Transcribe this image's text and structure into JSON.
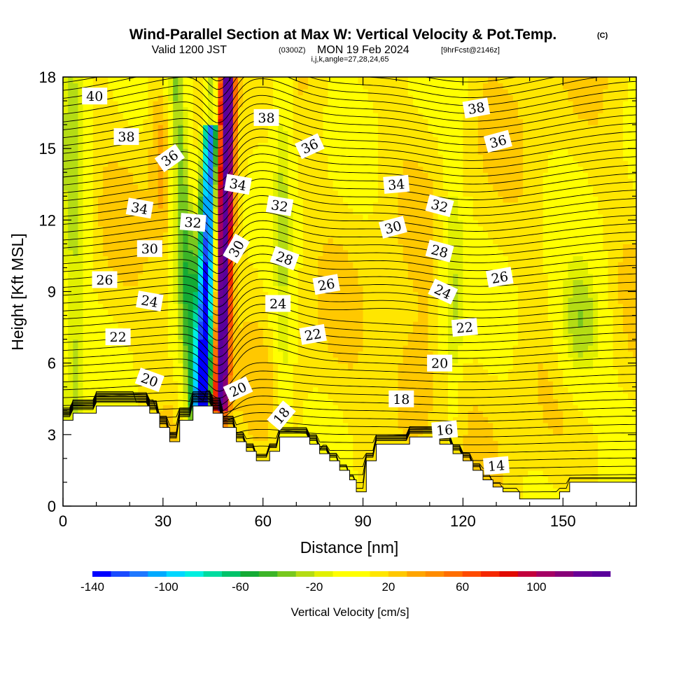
{
  "header": {
    "title": "Wind-Parallel Section at Max W: Vertical Velocity & Pot.Temp.",
    "copyright": "(C)",
    "valid_prefix": "Valid 1200 JST",
    "valid_z": "(0300Z)",
    "valid_date": "MON 19 Feb 2024",
    "forecast": "[9hrFcst@2146z]",
    "params": "i,j,k,angle=27,28,24,65"
  },
  "chart_data": {
    "type": "heatmap",
    "xlabel": "Distance [nm]",
    "ylabel": "Height [Kft MSL]",
    "xlim": [
      0,
      172
    ],
    "ylim": [
      0,
      18
    ],
    "xticks": [
      0,
      30,
      60,
      90,
      120,
      150
    ],
    "yticks": [
      0,
      3,
      6,
      9,
      12,
      15,
      18
    ],
    "colorbar": {
      "label": "Vertical Velocity [cm/s]",
      "range": [
        -140,
        140
      ],
      "step": 10,
      "tick_labels": [
        "-140",
        "-100",
        "-60",
        "-20",
        "20",
        "60",
        "100"
      ],
      "tick_values": [
        -140,
        -100,
        -60,
        -20,
        20,
        60,
        100
      ],
      "colors": [
        "#0000ff",
        "#1a4bff",
        "#1f78ff",
        "#00aaff",
        "#00d7ff",
        "#00efe0",
        "#00dca0",
        "#00c36a",
        "#14aa35",
        "#3cb428",
        "#78c81e",
        "#b4dc14",
        "#e1f000",
        "#ffff00",
        "#ffff00",
        "#ffe600",
        "#ffc800",
        "#ffa500",
        "#ff8c00",
        "#ff6e00",
        "#ff4b00",
        "#f52800",
        "#e10a00",
        "#c3003c",
        "#a50064",
        "#870078",
        "#690096",
        "#5a009b"
      ]
    },
    "terrain_kft": [
      [
        0,
        3.6
      ],
      [
        3,
        3.6
      ],
      [
        3,
        3.9
      ],
      [
        10,
        3.9
      ],
      [
        10,
        4.2
      ],
      [
        26,
        4.2
      ],
      [
        26,
        3.9
      ],
      [
        29,
        3.9
      ],
      [
        29,
        3.3
      ],
      [
        32,
        3.3
      ],
      [
        32,
        2.7
      ],
      [
        35,
        2.7
      ],
      [
        35,
        3.6
      ],
      [
        39,
        3.6
      ],
      [
        39,
        4.2
      ],
      [
        45,
        4.2
      ],
      [
        45,
        3.9
      ],
      [
        48,
        3.9
      ],
      [
        48,
        3.3
      ],
      [
        52,
        3.3
      ],
      [
        52,
        2.7
      ],
      [
        55,
        2.7
      ],
      [
        55,
        2.3
      ],
      [
        58,
        2.3
      ],
      [
        58,
        1.9
      ],
      [
        62,
        1.9
      ],
      [
        62,
        2.3
      ],
      [
        65,
        2.3
      ],
      [
        65,
        2.9
      ],
      [
        74,
        2.9
      ],
      [
        74,
        2.6
      ],
      [
        77,
        2.6
      ],
      [
        77,
        2.2
      ],
      [
        80,
        2.2
      ],
      [
        80,
        1.9
      ],
      [
        83,
        1.9
      ],
      [
        83,
        1.5
      ],
      [
        86,
        1.5
      ],
      [
        86,
        1.1
      ],
      [
        88,
        1.1
      ],
      [
        88,
        0.6
      ],
      [
        91,
        0.6
      ],
      [
        91,
        1.9
      ],
      [
        94,
        1.9
      ],
      [
        94,
        2.6
      ],
      [
        104,
        2.6
      ],
      [
        104,
        2.9
      ],
      [
        113,
        2.9
      ],
      [
        113,
        2.6
      ],
      [
        117,
        2.6
      ],
      [
        117,
        2.2
      ],
      [
        120,
        2.2
      ],
      [
        120,
        1.9
      ],
      [
        123,
        1.9
      ],
      [
        123,
        1.5
      ],
      [
        126,
        1.5
      ],
      [
        126,
        1.1
      ],
      [
        129,
        1.1
      ],
      [
        129,
        0.8
      ],
      [
        132,
        0.8
      ],
      [
        132,
        0.6
      ],
      [
        137,
        0.6
      ],
      [
        137,
        0.3
      ],
      [
        149,
        0.3
      ],
      [
        149,
        0.6
      ],
      [
        152,
        0.6
      ],
      [
        152,
        1.0
      ],
      [
        172,
        1.0
      ],
      [
        172,
        0
      ]
    ],
    "series": [
      {
        "name": "w_updraft",
        "center_x": 49,
        "width_nm": 3,
        "amplitude_cm_s": 140
      },
      {
        "name": "w_downdraft",
        "center_x": 45,
        "width_nm": 4,
        "amplitude_cm_s": -140
      }
    ],
    "contour_labels": [
      {
        "text": "40",
        "x": 9.5,
        "y": 17.2,
        "angle": 0
      },
      {
        "text": "38",
        "x": 19,
        "y": 15.5,
        "angle": 0
      },
      {
        "text": "36",
        "x": 32,
        "y": 14.6,
        "angle": -35
      },
      {
        "text": "34",
        "x": 23,
        "y": 12.5,
        "angle": 10
      },
      {
        "text": "32",
        "x": 39,
        "y": 11.9,
        "angle": 5
      },
      {
        "text": "30",
        "x": 26,
        "y": 10.8,
        "angle": 0
      },
      {
        "text": "26",
        "x": 12.5,
        "y": 9.5,
        "angle": 0
      },
      {
        "text": "24",
        "x": 26,
        "y": 8.6,
        "angle": 10
      },
      {
        "text": "22",
        "x": 16.5,
        "y": 7.1,
        "angle": 0
      },
      {
        "text": "20",
        "x": 26,
        "y": 5.3,
        "angle": 20
      },
      {
        "text": "38",
        "x": 61,
        "y": 16.3,
        "angle": 0
      },
      {
        "text": "36",
        "x": 74,
        "y": 15.1,
        "angle": -25
      },
      {
        "text": "34",
        "x": 52.5,
        "y": 13.5,
        "angle": 10
      },
      {
        "text": "32",
        "x": 65,
        "y": 12.6,
        "angle": 10
      },
      {
        "text": "30",
        "x": 52,
        "y": 10.8,
        "angle": -60
      },
      {
        "text": "28",
        "x": 66.5,
        "y": 10.4,
        "angle": 20
      },
      {
        "text": "24",
        "x": 64.5,
        "y": 8.5,
        "angle": 0
      },
      {
        "text": "26",
        "x": 79,
        "y": 9.3,
        "angle": -10
      },
      {
        "text": "22",
        "x": 75,
        "y": 7.2,
        "angle": -10
      },
      {
        "text": "20",
        "x": 52.5,
        "y": 4.9,
        "angle": -25
      },
      {
        "text": "18",
        "x": 65.5,
        "y": 3.8,
        "angle": -50
      },
      {
        "text": "34",
        "x": 100,
        "y": 13.5,
        "angle": -5
      },
      {
        "text": "30",
        "x": 99,
        "y": 11.7,
        "angle": -15
      },
      {
        "text": "18",
        "x": 101.5,
        "y": 4.5,
        "angle": 0
      },
      {
        "text": "38",
        "x": 124,
        "y": 16.7,
        "angle": -10
      },
      {
        "text": "36",
        "x": 130.5,
        "y": 15.3,
        "angle": -15
      },
      {
        "text": "32",
        "x": 113,
        "y": 12.6,
        "angle": 15
      },
      {
        "text": "28",
        "x": 113,
        "y": 10.7,
        "angle": 15
      },
      {
        "text": "26",
        "x": 131,
        "y": 9.6,
        "angle": -10
      },
      {
        "text": "24",
        "x": 114,
        "y": 9.0,
        "angle": 25
      },
      {
        "text": "22",
        "x": 120.5,
        "y": 7.5,
        "angle": -5
      },
      {
        "text": "20",
        "x": 113,
        "y": 6.0,
        "angle": 0
      },
      {
        "text": "16",
        "x": 114.5,
        "y": 3.2,
        "angle": -5
      },
      {
        "text": "14",
        "x": 130,
        "y": 1.7,
        "angle": -5
      }
    ]
  }
}
